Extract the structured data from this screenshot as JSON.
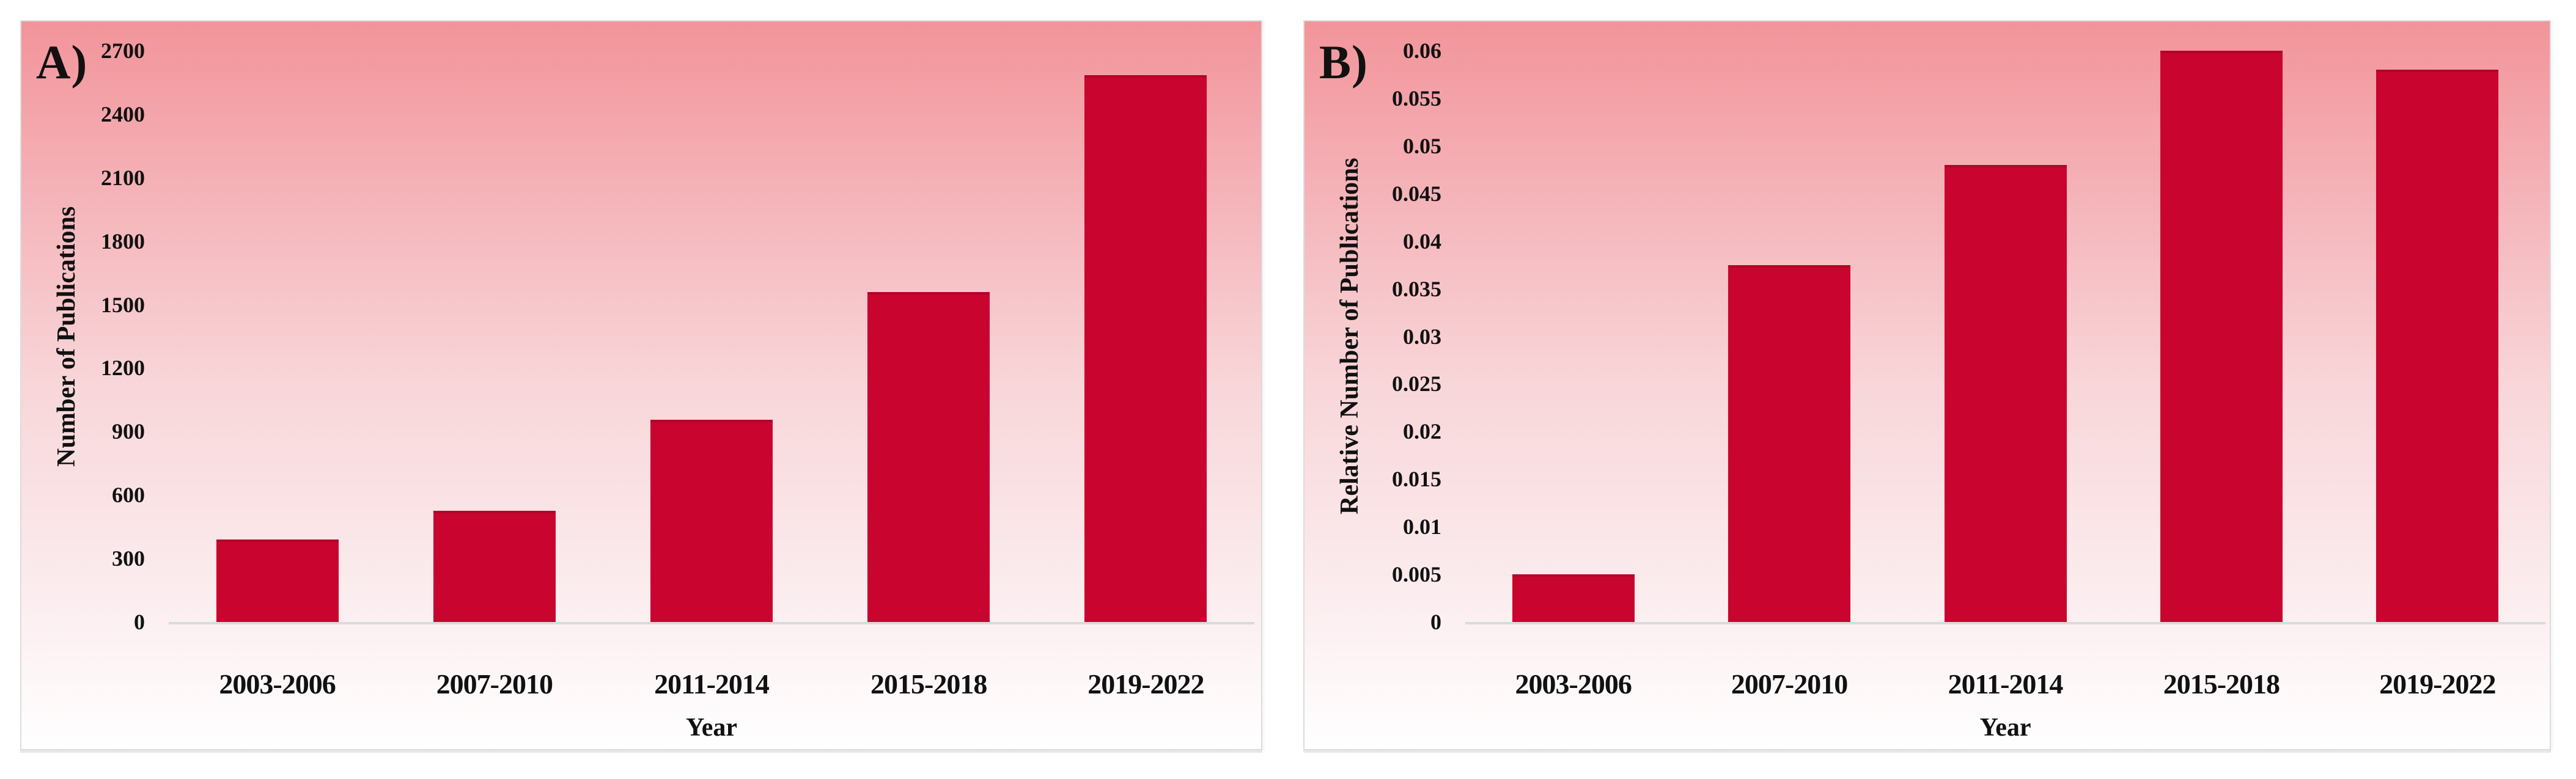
{
  "figure_labels": {
    "panel_a": "A)",
    "panel_b": "B)"
  },
  "colors": {
    "bar": "#C8042F",
    "axis_line": "#DADADA",
    "text": "#111111",
    "plot_bg_top": "#F2949A",
    "plot_bg_bottom": "#FFFFFF",
    "card_border": "#DCDCDC"
  },
  "chart_data": [
    {
      "type": "bar",
      "panel_label": "A)",
      "title": "",
      "categories": [
        "2003-2006",
        "2007-2010",
        "2011-2014",
        "2015-2018",
        "2019-2022"
      ],
      "values": [
        390,
        525,
        955,
        1560,
        2585
      ],
      "xlabel": "Year",
      "ylabel": "Number of Publications",
      "ylim": [
        0,
        2700
      ],
      "y_tick_step": 300,
      "y_tick_labels": [
        "0",
        "300",
        "600",
        "900",
        "1200",
        "1500",
        "1800",
        "2100",
        "2400",
        "2700"
      ],
      "grid": false,
      "legend": false,
      "bar_color": "#C8042F"
    },
    {
      "type": "bar",
      "panel_label": "B)",
      "title": "",
      "categories": [
        "2003-2006",
        "2007-2010",
        "2011-2014",
        "2015-2018",
        "2019-2022"
      ],
      "values": [
        0.005,
        0.0375,
        0.048,
        0.06,
        0.058
      ],
      "xlabel": "Year",
      "ylabel": "Relative Number of Publications",
      "ylim": [
        0,
        0.06
      ],
      "y_tick_step": 0.005,
      "y_tick_labels": [
        "0",
        "0.005",
        "0.01",
        "0.015",
        "0.02",
        "0.025",
        "0.03",
        "0.035",
        "0.04",
        "0.045",
        "0.05",
        "0.055",
        "0.06"
      ],
      "grid": false,
      "legend": false,
      "bar_color": "#C8042F"
    }
  ]
}
